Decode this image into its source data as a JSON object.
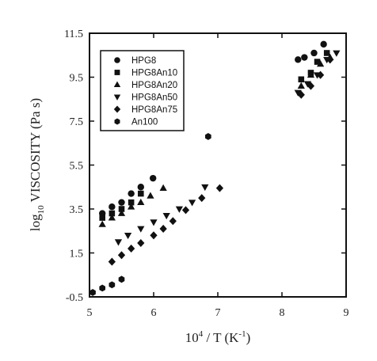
{
  "chart_data": {
    "type": "scatter",
    "xlabel": {
      "base": "10",
      "sup": "4",
      "rest": " / T (K",
      "unit_sup": "-1",
      "close": ")"
    },
    "ylabel": {
      "prefix": "log",
      "sub": "10",
      "rest": " VISCOSITY (Pa s)"
    },
    "xlim": [
      5,
      9
    ],
    "ylim": [
      -0.5,
      11.5
    ],
    "xticks": [
      5,
      6,
      7,
      8,
      9
    ],
    "yticks": [
      -0.5,
      1.5,
      3.5,
      5.5,
      7.5,
      9.5,
      11.5
    ],
    "ytick_labels": [
      "-0.5",
      "1.5",
      "3.5",
      "5.5",
      "7.5",
      "9.5",
      "11.5"
    ],
    "grid": false,
    "legend_position": "top-left",
    "series": [
      {
        "name": "HPG8",
        "marker": "circle",
        "points": [
          [
            5.2,
            3.3
          ],
          [
            5.35,
            3.6
          ],
          [
            5.5,
            3.8
          ],
          [
            5.65,
            4.2
          ],
          [
            5.8,
            4.5
          ],
          [
            5.99,
            4.9
          ],
          [
            8.25,
            10.3
          ],
          [
            8.35,
            10.4
          ],
          [
            8.5,
            10.6
          ],
          [
            8.65,
            11.0
          ]
        ]
      },
      {
        "name": "HPG8An10",
        "marker": "square",
        "points": [
          [
            5.2,
            3.1
          ],
          [
            5.35,
            3.3
          ],
          [
            5.5,
            3.5
          ],
          [
            5.65,
            3.8
          ],
          [
            5.8,
            4.2
          ],
          [
            8.3,
            9.4
          ],
          [
            8.45,
            9.7
          ],
          [
            8.55,
            10.2
          ],
          [
            8.7,
            10.6
          ]
        ]
      },
      {
        "name": "HPG8An20",
        "marker": "triangle-up",
        "points": [
          [
            5.2,
            2.8
          ],
          [
            5.35,
            3.1
          ],
          [
            5.5,
            3.3
          ],
          [
            5.65,
            3.6
          ],
          [
            5.8,
            3.8
          ],
          [
            5.95,
            4.1
          ],
          [
            6.15,
            4.45
          ],
          [
            8.3,
            9.1
          ],
          [
            8.45,
            9.6
          ],
          [
            8.6,
            10.1
          ],
          [
            8.75,
            10.4
          ]
        ]
      },
      {
        "name": "HPG8An50",
        "marker": "triangle-down",
        "points": [
          [
            5.45,
            2.0
          ],
          [
            5.6,
            2.3
          ],
          [
            5.8,
            2.6
          ],
          [
            6.0,
            2.9
          ],
          [
            6.2,
            3.2
          ],
          [
            6.4,
            3.5
          ],
          [
            6.6,
            3.8
          ],
          [
            6.8,
            4.5
          ],
          [
            8.25,
            8.8
          ],
          [
            8.4,
            9.2
          ],
          [
            8.55,
            9.6
          ],
          [
            8.7,
            10.3
          ],
          [
            8.85,
            10.6
          ]
        ]
      },
      {
        "name": "HPG8An75",
        "marker": "diamond",
        "points": [
          [
            5.35,
            1.1
          ],
          [
            5.5,
            1.4
          ],
          [
            5.65,
            1.7
          ],
          [
            5.8,
            1.95
          ],
          [
            6.0,
            2.3
          ],
          [
            6.15,
            2.6
          ],
          [
            6.3,
            2.95
          ],
          [
            6.5,
            3.45
          ],
          [
            6.75,
            4.0
          ],
          [
            7.03,
            4.45
          ],
          [
            8.3,
            8.7
          ],
          [
            8.45,
            9.1
          ],
          [
            8.6,
            9.6
          ],
          [
            8.75,
            10.3
          ]
        ]
      },
      {
        "name": "An100",
        "marker": "hexagon",
        "points": [
          [
            5.05,
            -0.3
          ],
          [
            5.2,
            -0.1
          ],
          [
            5.35,
            0.05
          ],
          [
            5.5,
            0.3
          ],
          [
            6.85,
            6.8
          ]
        ]
      }
    ]
  }
}
